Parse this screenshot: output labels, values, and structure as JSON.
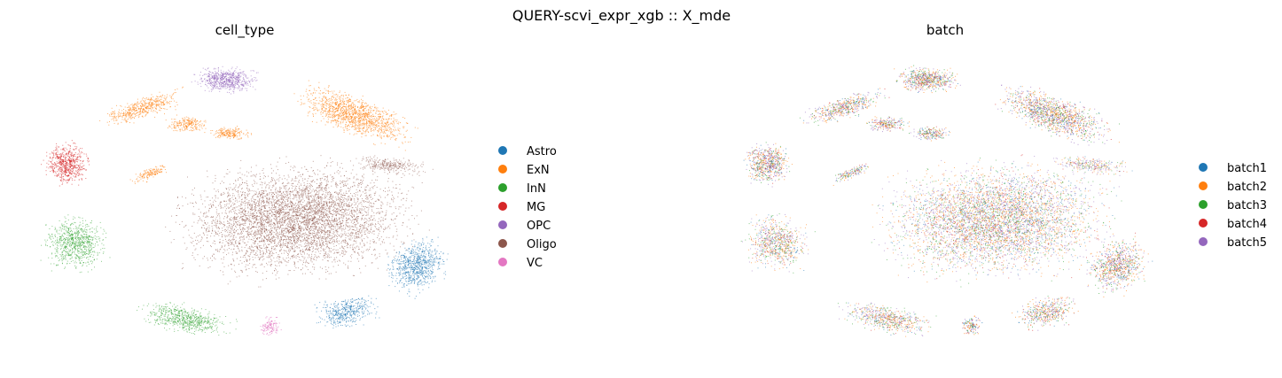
{
  "figure": {
    "suptitle": "QUERY-scvi_expr_xgb :: X_mde"
  },
  "chart_data": [
    {
      "type": "scatter",
      "title": "cell_type",
      "xlabel": "",
      "ylabel": "",
      "axes_visible": false,
      "grid": false,
      "legend_placement": "right",
      "legend": [
        {
          "label": "Astro",
          "color": "#1f77b4"
        },
        {
          "label": "ExN",
          "color": "#ff7f0e"
        },
        {
          "label": "InN",
          "color": "#2ca02c"
        },
        {
          "label": "MG",
          "color": "#d62728"
        },
        {
          "label": "OPC",
          "color": "#9467bd"
        },
        {
          "label": "Oligo",
          "color": "#8c564b"
        },
        {
          "label": "VC",
          "color": "#e377c2"
        }
      ]
    },
    {
      "type": "scatter",
      "title": "batch",
      "xlabel": "",
      "ylabel": "",
      "axes_visible": false,
      "grid": false,
      "legend_placement": "right",
      "legend": [
        {
          "label": "batch1",
          "color": "#1f77b4"
        },
        {
          "label": "batch2",
          "color": "#ff7f0e"
        },
        {
          "label": "batch3",
          "color": "#2ca02c"
        },
        {
          "label": "batch4",
          "color": "#d62728"
        },
        {
          "label": "batch5",
          "color": "#9467bd"
        }
      ]
    }
  ]
}
